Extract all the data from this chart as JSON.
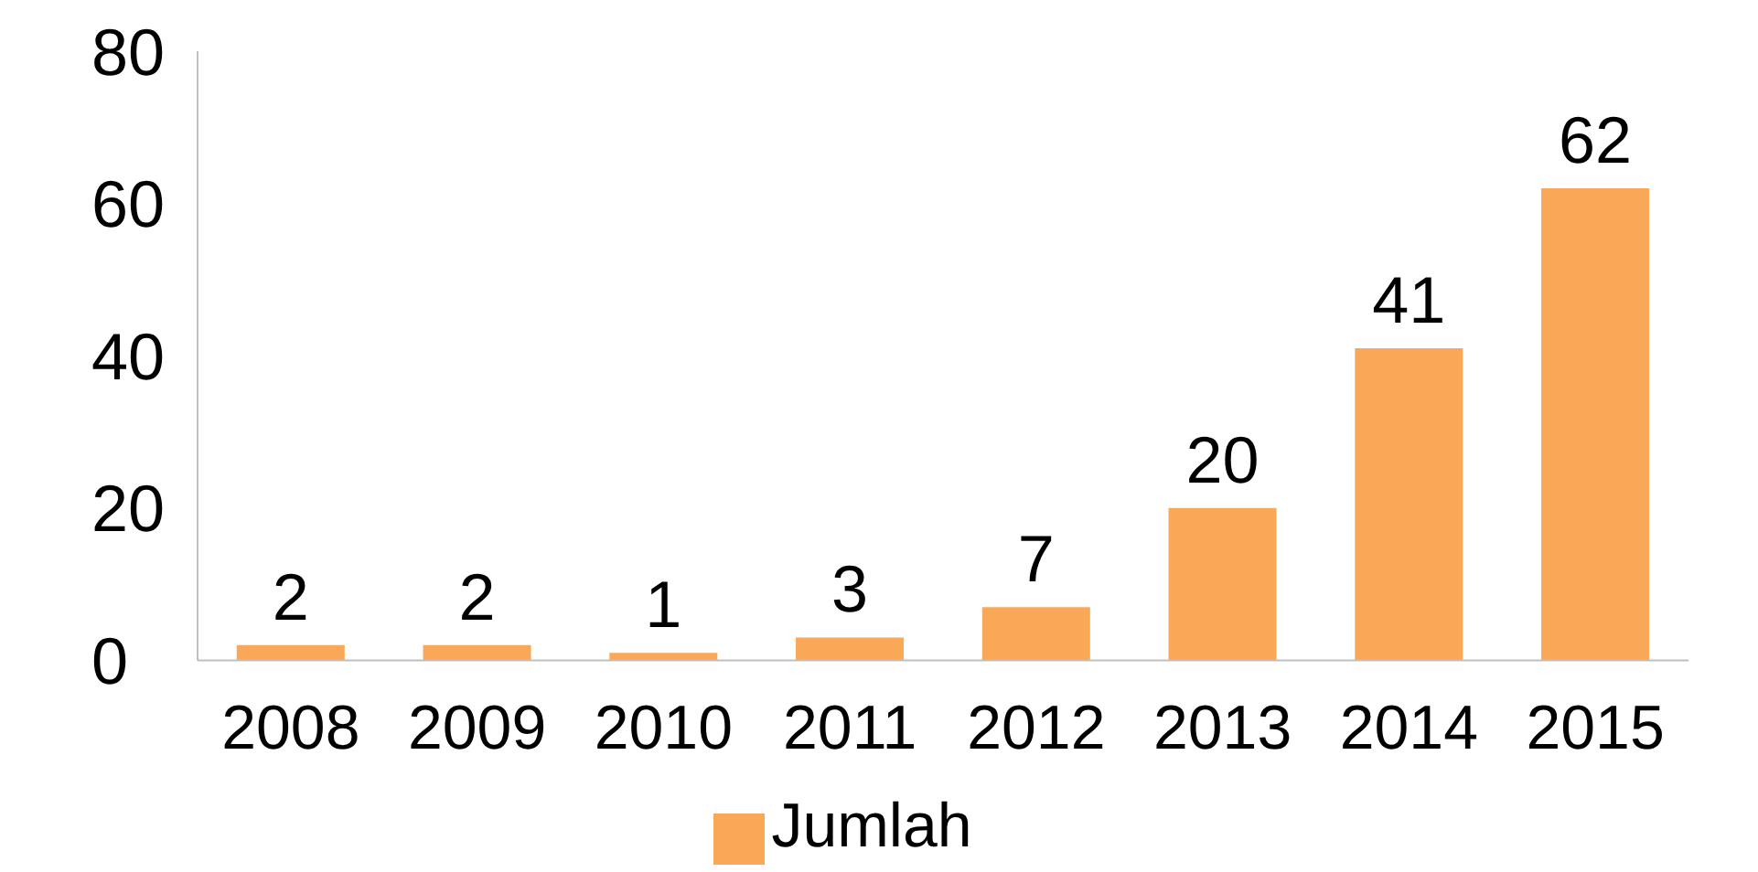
{
  "chart_data": {
    "type": "bar",
    "categories": [
      "2008",
      "2009",
      "2010",
      "2011",
      "2012",
      "2013",
      "2014",
      "2015"
    ],
    "series": [
      {
        "name": "Jumlah",
        "color": "#f9a857",
        "values": [
          2,
          2,
          1,
          3,
          7,
          20,
          41,
          62
        ]
      }
    ],
    "ylim": [
      0,
      80
    ],
    "yticks": [
      0,
      20,
      40,
      60,
      80
    ],
    "data_labels": true,
    "grid": false,
    "legend": "bottom"
  }
}
